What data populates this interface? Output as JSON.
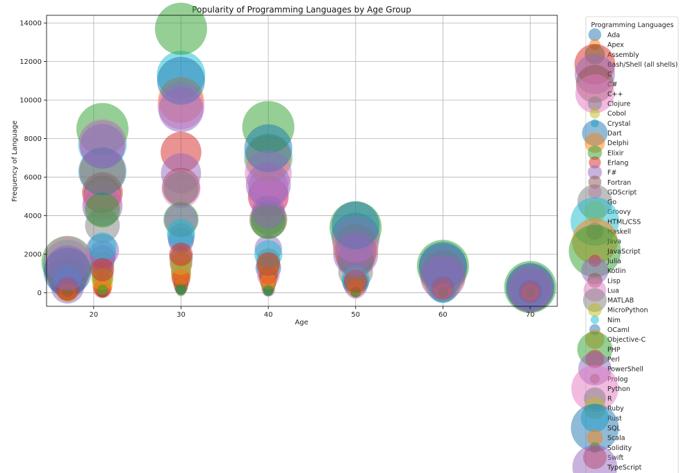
{
  "chart_data": {
    "type": "scatter",
    "title": "Popularity of Programming Languages by Age Group",
    "xlabel": "Age",
    "ylabel": "Frequency of Language",
    "xlim": [
      14.6,
      73.1
    ],
    "ylim": [
      -700,
      14400
    ],
    "xticks": [
      20,
      30,
      40,
      50,
      60,
      70
    ],
    "yticks": [
      0,
      2000,
      4000,
      6000,
      8000,
      10000,
      12000,
      14000
    ],
    "grid": true,
    "legend": {
      "title": "Programming Languages",
      "placement": "outside-right"
    },
    "ages": [
      17,
      21,
      30,
      40,
      50,
      60,
      70
    ],
    "palette": [
      "#1f77b4",
      "#ff7f0e",
      "#2ca02c",
      "#d62728",
      "#9467bd",
      "#8c564b",
      "#e377c2",
      "#7f7f7f",
      "#bcbd22",
      "#17becf"
    ],
    "series": [
      {
        "name": "Ada",
        "values": [
          60,
          150,
          350,
          280,
          120,
          80,
          30
        ]
      },
      {
        "name": "Apex",
        "values": [
          40,
          100,
          200,
          180,
          90,
          50,
          20
        ]
      },
      {
        "name": "Assembly",
        "values": [
          200,
          700,
          1100,
          900,
          600,
          300,
          100
        ]
      },
      {
        "name": "Bash/Shell (all shells)",
        "values": [
          900,
          5200,
          7300,
          5000,
          2000,
          1000,
          200
        ]
      },
      {
        "name": "C",
        "values": [
          800,
          4500,
          6200,
          5500,
          2500,
          1200,
          250
        ]
      },
      {
        "name": "C#",
        "values": [
          1000,
          5100,
          5500,
          3800,
          1800,
          900,
          200
        ]
      },
      {
        "name": "C++",
        "values": [
          1100,
          4800,
          5400,
          4900,
          2100,
          900,
          200
        ]
      },
      {
        "name": "Clojure",
        "values": [
          50,
          200,
          500,
          400,
          200,
          100,
          30
        ]
      },
      {
        "name": "Cobol",
        "values": [
          10,
          30,
          80,
          150,
          120,
          80,
          40
        ]
      },
      {
        "name": "Crystal",
        "values": [
          10,
          30,
          60,
          50,
          20,
          10,
          5
        ]
      },
      {
        "name": "Dart",
        "values": [
          700,
          1800,
          2700,
          1300,
          500,
          200,
          50
        ]
      },
      {
        "name": "Delphi",
        "values": [
          100,
          400,
          900,
          1100,
          800,
          500,
          150
        ]
      },
      {
        "name": "Elixir",
        "values": [
          50,
          250,
          600,
          400,
          150,
          50,
          10
        ]
      },
      {
        "name": "Erlang",
        "values": [
          30,
          120,
          300,
          250,
          120,
          50,
          10
        ]
      },
      {
        "name": "F#",
        "values": [
          40,
          200,
          500,
          450,
          200,
          80,
          20
        ]
      },
      {
        "name": "Fortran",
        "values": [
          30,
          100,
          250,
          300,
          250,
          150,
          60
        ]
      },
      {
        "name": "GDScript",
        "values": [
          200,
          500,
          400,
          150,
          40,
          10,
          5
        ]
      },
      {
        "name": "Go",
        "values": [
          600,
          3500,
          5400,
          3900,
          1100,
          400,
          80
        ]
      },
      {
        "name": "Groovy",
        "values": [
          100,
          800,
          1800,
          1500,
          500,
          150,
          30
        ]
      },
      {
        "name": "HTML/CSS",
        "values": [
          1500,
          7700,
          11300,
          7000,
          2900,
          1300,
          250
        ]
      },
      {
        "name": "Haskell",
        "values": [
          100,
          600,
          900,
          600,
          250,
          100,
          30
        ]
      },
      {
        "name": "Java",
        "values": [
          1200,
          6300,
          10000,
          7000,
          2400,
          1000,
          200
        ]
      },
      {
        "name": "JavaScript",
        "values": [
          1600,
          8500,
          13700,
          8600,
          3400,
          1400,
          300
        ]
      },
      {
        "name": "Julia",
        "values": [
          30,
          150,
          300,
          250,
          100,
          50,
          10
        ]
      },
      {
        "name": "Kotlin",
        "values": [
          400,
          2000,
          2900,
          2300,
          600,
          200,
          50
        ]
      },
      {
        "name": "Lisp",
        "values": [
          30,
          150,
          400,
          500,
          350,
          200,
          80
        ]
      },
      {
        "name": "Lua",
        "values": [
          800,
          1700,
          1500,
          900,
          300,
          100,
          30
        ]
      },
      {
        "name": "MATLAB",
        "values": [
          300,
          1500,
          1800,
          1700,
          500,
          150,
          30
        ]
      },
      {
        "name": "MicroPython",
        "values": [
          100,
          300,
          400,
          300,
          150,
          60,
          20
        ]
      },
      {
        "name": "Nim",
        "values": [
          10,
          40,
          80,
          60,
          20,
          5,
          2
        ]
      },
      {
        "name": "OCaml",
        "values": [
          30,
          150,
          200,
          150,
          60,
          20,
          5
        ]
      },
      {
        "name": "Objective-C",
        "values": [
          100,
          600,
          1200,
          1000,
          400,
          150,
          40
        ]
      },
      {
        "name": "PHP",
        "values": [
          900,
          4300,
          3800,
          3700,
          1800,
          700,
          150
        ]
      },
      {
        "name": "Perl",
        "values": [
          50,
          200,
          700,
          900,
          700,
          400,
          100
        ]
      },
      {
        "name": "PowerShell",
        "values": [
          300,
          2200,
          3800,
          4200,
          2000,
          800,
          150
        ]
      },
      {
        "name": "Prolog",
        "values": [
          20,
          80,
          150,
          100,
          50,
          20,
          5
        ]
      },
      {
        "name": "Python",
        "values": [
          1700,
          7800,
          9700,
          6200,
          2800,
          1300,
          300
        ]
      },
      {
        "name": "R",
        "values": [
          150,
          1000,
          1500,
          1300,
          600,
          300,
          60
        ]
      },
      {
        "name": "Ruby",
        "values": [
          100,
          700,
          1500,
          1500,
          700,
          300,
          50
        ]
      },
      {
        "name": "Rust",
        "values": [
          700,
          2400,
          3100,
          2000,
          700,
          200,
          40
        ]
      },
      {
        "name": "SQL",
        "values": [
          1100,
          6300,
          11000,
          7500,
          3500,
          1400,
          300
        ]
      },
      {
        "name": "Scala",
        "values": [
          50,
          300,
          800,
          600,
          250,
          100,
          20
        ]
      },
      {
        "name": "Solidity",
        "values": [
          50,
          150,
          200,
          100,
          40,
          10,
          5
        ]
      },
      {
        "name": "Swift",
        "values": [
          200,
          1200,
          2000,
          1500,
          600,
          250,
          60
        ]
      },
      {
        "name": "TypeScript",
        "values": [
          1300,
          7600,
          9500,
          5600,
          2000,
          800,
          150
        ]
      }
    ]
  }
}
